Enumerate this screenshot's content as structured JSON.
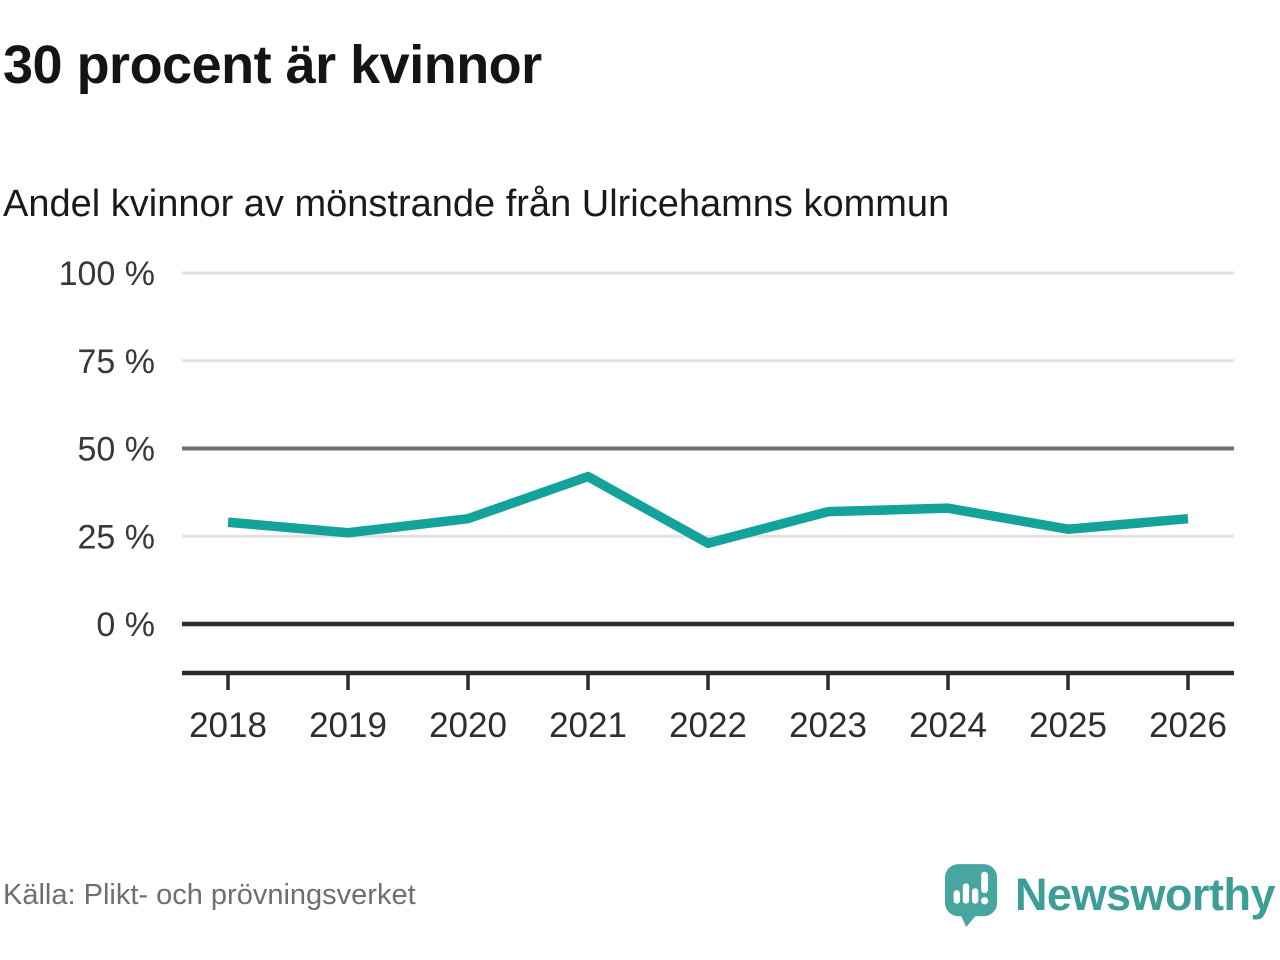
{
  "header": {
    "title": "30 procent är kvinnor",
    "subtitle": "Andel kvinnor av mönstrande från Ulricehamns kommun"
  },
  "footer": {
    "source": "Källa: Plikt- och prövningsverket",
    "brand": "Newsworthy"
  },
  "colors": {
    "accent_line": "#13a39a",
    "grid_light": "#e2e2e2",
    "grid_mid": "#6b6e74",
    "grid_dark": "#2b2b2f",
    "axis": "#2b2b2f",
    "tick_label": "#2e2e32",
    "ytick_label": "#38383c",
    "logo_teal": "#49a69f",
    "wordmark_teal": "#3d9e97"
  },
  "chart_data": {
    "type": "line",
    "title": "30 procent är kvinnor",
    "subtitle": "Andel kvinnor av mönstrande från Ulricehamns kommun",
    "categories": [
      "2018",
      "2019",
      "2020",
      "2021",
      "2022",
      "2023",
      "2024",
      "2025",
      "2026"
    ],
    "series": [
      {
        "name": "Andel kvinnor av mönstrande",
        "unit": "%",
        "values": [
          29,
          26,
          30,
          42,
          23,
          32,
          33,
          27,
          30
        ]
      }
    ],
    "xlabel": "",
    "ylabel": "",
    "ylim": [
      0,
      100
    ],
    "yticks": [
      {
        "value": 100,
        "label": "100 %",
        "emphasis": "light"
      },
      {
        "value": 75,
        "label": "75 %",
        "emphasis": "light"
      },
      {
        "value": 50,
        "label": "50 %",
        "emphasis": "mid"
      },
      {
        "value": 25,
        "label": "25 %",
        "emphasis": "light"
      },
      {
        "value": 0,
        "label": "0 %",
        "emphasis": "dark"
      }
    ],
    "grid": true,
    "legend_position": "none"
  }
}
